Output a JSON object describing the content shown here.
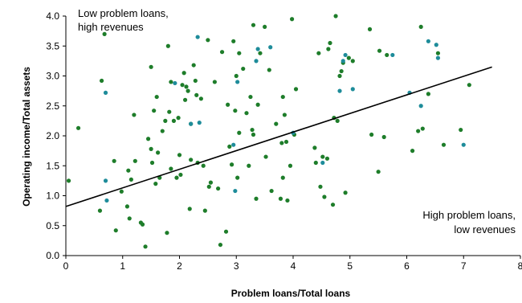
{
  "chart_data": {
    "type": "scatter",
    "xlabel": "Problem loans/Total loans",
    "ylabel": "Operating income/Total assets",
    "xlim": [
      0,
      8
    ],
    "ylim": [
      0.0,
      4.0
    ],
    "x_ticks": [
      "0",
      "1",
      "2",
      "3",
      "4",
      "5",
      "6",
      "7",
      "8"
    ],
    "y_ticks": [
      "0.0",
      "0.5",
      "1.0",
      "1.5",
      "2.0",
      "2.5",
      "3.0",
      "3.5",
      "4.0"
    ],
    "grid": false,
    "annotations": {
      "top_left": [
        "Low  problem loans,",
        "high revenues"
      ],
      "bottom_right": [
        "High problem loans,",
        "low revenues"
      ]
    },
    "trendline": {
      "x": [
        0,
        7.5
      ],
      "y": [
        0.82,
        3.15
      ]
    },
    "colors": {
      "green": "#1e7d2a",
      "teal": "#1e8c9a",
      "line": "#000000"
    },
    "series": [
      {
        "color": "green",
        "points": [
          [
            0.05,
            1.25
          ],
          [
            0.22,
            2.13
          ],
          [
            0.6,
            0.75
          ],
          [
            0.63,
            2.92
          ],
          [
            0.68,
            3.7
          ],
          [
            0.85,
            1.58
          ],
          [
            0.88,
            0.42
          ],
          [
            0.98,
            1.07
          ],
          [
            1.08,
            0.82
          ],
          [
            1.1,
            1.42
          ],
          [
            1.12,
            0.62
          ],
          [
            1.15,
            1.27
          ],
          [
            1.2,
            2.35
          ],
          [
            1.22,
            1.58
          ],
          [
            1.32,
            0.55
          ],
          [
            1.35,
            0.52
          ],
          [
            1.4,
            0.15
          ],
          [
            1.45,
            1.95
          ],
          [
            1.5,
            3.15
          ],
          [
            1.5,
            1.78
          ],
          [
            1.52,
            1.55
          ],
          [
            1.55,
            2.42
          ],
          [
            1.58,
            1.2
          ],
          [
            1.6,
            2.65
          ],
          [
            1.62,
            1.72
          ],
          [
            1.65,
            1.3
          ],
          [
            1.7,
            2.08
          ],
          [
            1.75,
            2.25
          ],
          [
            1.78,
            0.38
          ],
          [
            1.8,
            3.5
          ],
          [
            1.82,
            2.4
          ],
          [
            1.85,
            2.9
          ],
          [
            1.85,
            1.45
          ],
          [
            1.9,
            2.25
          ],
          [
            1.95,
            1.3
          ],
          [
            1.98,
            2.3
          ],
          [
            2.0,
            1.68
          ],
          [
            2.02,
            1.35
          ],
          [
            2.05,
            2.85
          ],
          [
            2.08,
            3.05
          ],
          [
            2.1,
            2.6
          ],
          [
            2.12,
            2.82
          ],
          [
            2.15,
            2.75
          ],
          [
            2.18,
            0.78
          ],
          [
            2.2,
            1.6
          ],
          [
            2.2,
            2.2
          ],
          [
            2.25,
            3.18
          ],
          [
            2.28,
            2.92
          ],
          [
            2.3,
            2.68
          ],
          [
            2.32,
            1.55
          ],
          [
            2.38,
            2.62
          ],
          [
            2.42,
            1.5
          ],
          [
            2.45,
            0.75
          ],
          [
            2.5,
            3.6
          ],
          [
            2.52,
            1.15
          ],
          [
            2.55,
            1.22
          ],
          [
            2.62,
            2.9
          ],
          [
            2.68,
            1.12
          ],
          [
            2.72,
            0.18
          ],
          [
            2.75,
            3.4
          ],
          [
            2.82,
            0.4
          ],
          [
            2.85,
            2.52
          ],
          [
            2.88,
            1.82
          ],
          [
            2.92,
            1.52
          ],
          [
            2.95,
            3.58
          ],
          [
            2.98,
            2.42
          ],
          [
            3.0,
            3.0
          ],
          [
            3.02,
            1.3
          ],
          [
            3.05,
            2.05
          ],
          [
            3.05,
            3.38
          ],
          [
            3.12,
            3.12
          ],
          [
            3.18,
            2.38
          ],
          [
            3.22,
            1.5
          ],
          [
            3.25,
            2.65
          ],
          [
            3.28,
            2.1
          ],
          [
            3.3,
            2.02
          ],
          [
            3.3,
            3.85
          ],
          [
            3.35,
            0.95
          ],
          [
            3.38,
            2.52
          ],
          [
            3.42,
            3.38
          ],
          [
            3.5,
            3.82
          ],
          [
            3.52,
            1.65
          ],
          [
            3.58,
            3.1
          ],
          [
            3.62,
            1.08
          ],
          [
            3.7,
            2.2
          ],
          [
            3.78,
            0.95
          ],
          [
            3.8,
            1.88
          ],
          [
            3.82,
            2.65
          ],
          [
            3.82,
            1.3
          ],
          [
            3.85,
            2.35
          ],
          [
            3.88,
            1.9
          ],
          [
            3.9,
            0.92
          ],
          [
            3.95,
            1.5
          ],
          [
            3.98,
            3.95
          ],
          [
            4.02,
            2.02
          ],
          [
            4.05,
            2.78
          ],
          [
            4.38,
            1.8
          ],
          [
            4.4,
            1.55
          ],
          [
            4.45,
            3.38
          ],
          [
            4.48,
            1.15
          ],
          [
            4.52,
            1.65
          ],
          [
            4.55,
            0.98
          ],
          [
            4.6,
            1.62
          ],
          [
            4.62,
            3.45
          ],
          [
            4.65,
            3.55
          ],
          [
            4.7,
            0.85
          ],
          [
            4.72,
            2.3
          ],
          [
            4.75,
            4.0
          ],
          [
            4.78,
            2.25
          ],
          [
            4.82,
            3.0
          ],
          [
            4.85,
            3.08
          ],
          [
            4.88,
            3.22
          ],
          [
            4.92,
            1.05
          ],
          [
            4.98,
            3.3
          ],
          [
            5.05,
            3.25
          ],
          [
            5.35,
            3.78
          ],
          [
            5.38,
            2.02
          ],
          [
            5.5,
            1.4
          ],
          [
            5.52,
            3.42
          ],
          [
            5.6,
            1.98
          ],
          [
            5.65,
            3.35
          ],
          [
            6.1,
            1.75
          ],
          [
            6.2,
            2.08
          ],
          [
            6.25,
            3.82
          ],
          [
            6.28,
            2.12
          ],
          [
            6.38,
            2.7
          ],
          [
            6.55,
            3.38
          ],
          [
            6.65,
            1.85
          ],
          [
            6.95,
            2.1
          ],
          [
            7.1,
            2.85
          ]
        ]
      },
      {
        "color": "teal",
        "points": [
          [
            0.7,
            2.72
          ],
          [
            0.7,
            1.25
          ],
          [
            0.72,
            0.92
          ],
          [
            1.92,
            2.88
          ],
          [
            2.2,
            2.2
          ],
          [
            2.32,
            3.65
          ],
          [
            2.35,
            2.22
          ],
          [
            2.95,
            1.85
          ],
          [
            2.98,
            1.08
          ],
          [
            3.02,
            2.9
          ],
          [
            3.35,
            3.25
          ],
          [
            3.38,
            3.45
          ],
          [
            3.6,
            3.48
          ],
          [
            4.0,
            2.05
          ],
          [
            4.52,
            1.55
          ],
          [
            4.82,
            2.75
          ],
          [
            4.88,
            3.25
          ],
          [
            4.92,
            3.35
          ],
          [
            5.05,
            2.78
          ],
          [
            5.75,
            3.35
          ],
          [
            6.05,
            2.72
          ],
          [
            6.25,
            2.5
          ],
          [
            6.38,
            3.58
          ],
          [
            6.52,
            3.52
          ],
          [
            6.55,
            3.3
          ],
          [
            7.0,
            1.85
          ]
        ]
      }
    ]
  }
}
